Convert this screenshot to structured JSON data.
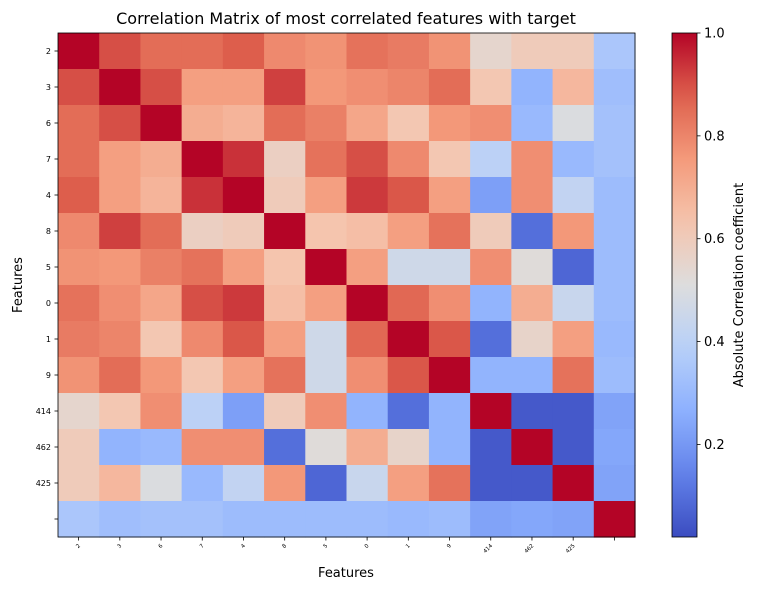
{
  "chart_data": {
    "type": "heatmap",
    "title": "Correlation Matrix of most correlated features with target",
    "xlabel": "Features",
    "ylabel": "Features",
    "x_categories": [
      "2",
      "3",
      "6",
      "7",
      "4",
      "8",
      "5",
      "0",
      "1",
      "9",
      "414",
      "462",
      "425",
      ""
    ],
    "y_categories": [
      "2",
      "3",
      "6",
      "7",
      "4",
      "8",
      "5",
      "0",
      "1",
      "9",
      "414",
      "462",
      "425",
      ""
    ],
    "colormap": "coolwarm",
    "vmin": 0.02,
    "vmax": 1.0,
    "colorbar": {
      "label": "Absolute Correlation coefficient",
      "ticks": [
        0.2,
        0.4,
        0.6,
        0.8,
        1.0
      ],
      "tick_labels": [
        "0.2",
        "0.4",
        "0.6",
        "0.8",
        "1.0"
      ]
    },
    "values": [
      [
        1.0,
        0.9,
        0.85,
        0.85,
        0.88,
        0.79,
        0.77,
        0.84,
        0.82,
        0.77,
        0.55,
        0.6,
        0.6,
        0.35
      ],
      [
        0.9,
        1.0,
        0.9,
        0.74,
        0.74,
        0.92,
        0.76,
        0.78,
        0.8,
        0.85,
        0.62,
        0.28,
        0.67,
        0.32
      ],
      [
        0.85,
        0.9,
        1.0,
        0.7,
        0.68,
        0.85,
        0.81,
        0.72,
        0.62,
        0.76,
        0.78,
        0.3,
        0.5,
        0.33
      ],
      [
        0.85,
        0.74,
        0.7,
        1.0,
        0.94,
        0.58,
        0.84,
        0.9,
        0.79,
        0.62,
        0.4,
        0.78,
        0.3,
        0.33
      ],
      [
        0.88,
        0.74,
        0.68,
        0.94,
        1.0,
        0.6,
        0.74,
        0.93,
        0.89,
        0.74,
        0.22,
        0.78,
        0.42,
        0.31
      ],
      [
        0.79,
        0.92,
        0.85,
        0.58,
        0.6,
        1.0,
        0.63,
        0.65,
        0.74,
        0.84,
        0.6,
        0.1,
        0.76,
        0.31
      ],
      [
        0.77,
        0.76,
        0.81,
        0.84,
        0.74,
        0.63,
        1.0,
        0.74,
        0.46,
        0.46,
        0.78,
        0.52,
        0.08,
        0.31
      ],
      [
        0.84,
        0.78,
        0.72,
        0.9,
        0.93,
        0.65,
        0.74,
        1.0,
        0.86,
        0.78,
        0.28,
        0.7,
        0.44,
        0.31
      ],
      [
        0.82,
        0.8,
        0.62,
        0.79,
        0.89,
        0.74,
        0.46,
        0.86,
        1.0,
        0.89,
        0.1,
        0.56,
        0.74,
        0.3
      ],
      [
        0.77,
        0.85,
        0.76,
        0.62,
        0.74,
        0.84,
        0.46,
        0.78,
        0.89,
        1.0,
        0.28,
        0.28,
        0.84,
        0.31
      ],
      [
        0.55,
        0.62,
        0.78,
        0.4,
        0.22,
        0.6,
        0.78,
        0.28,
        0.1,
        0.28,
        1.0,
        0.05,
        0.05,
        0.23
      ],
      [
        0.6,
        0.28,
        0.3,
        0.78,
        0.78,
        0.1,
        0.52,
        0.7,
        0.56,
        0.28,
        0.05,
        1.0,
        0.05,
        0.24
      ],
      [
        0.6,
        0.67,
        0.5,
        0.3,
        0.42,
        0.76,
        0.08,
        0.44,
        0.74,
        0.84,
        0.05,
        0.05,
        1.0,
        0.23
      ],
      [
        0.35,
        0.32,
        0.33,
        0.33,
        0.31,
        0.31,
        0.31,
        0.31,
        0.3,
        0.31,
        0.23,
        0.24,
        0.23,
        1.0
      ]
    ]
  }
}
